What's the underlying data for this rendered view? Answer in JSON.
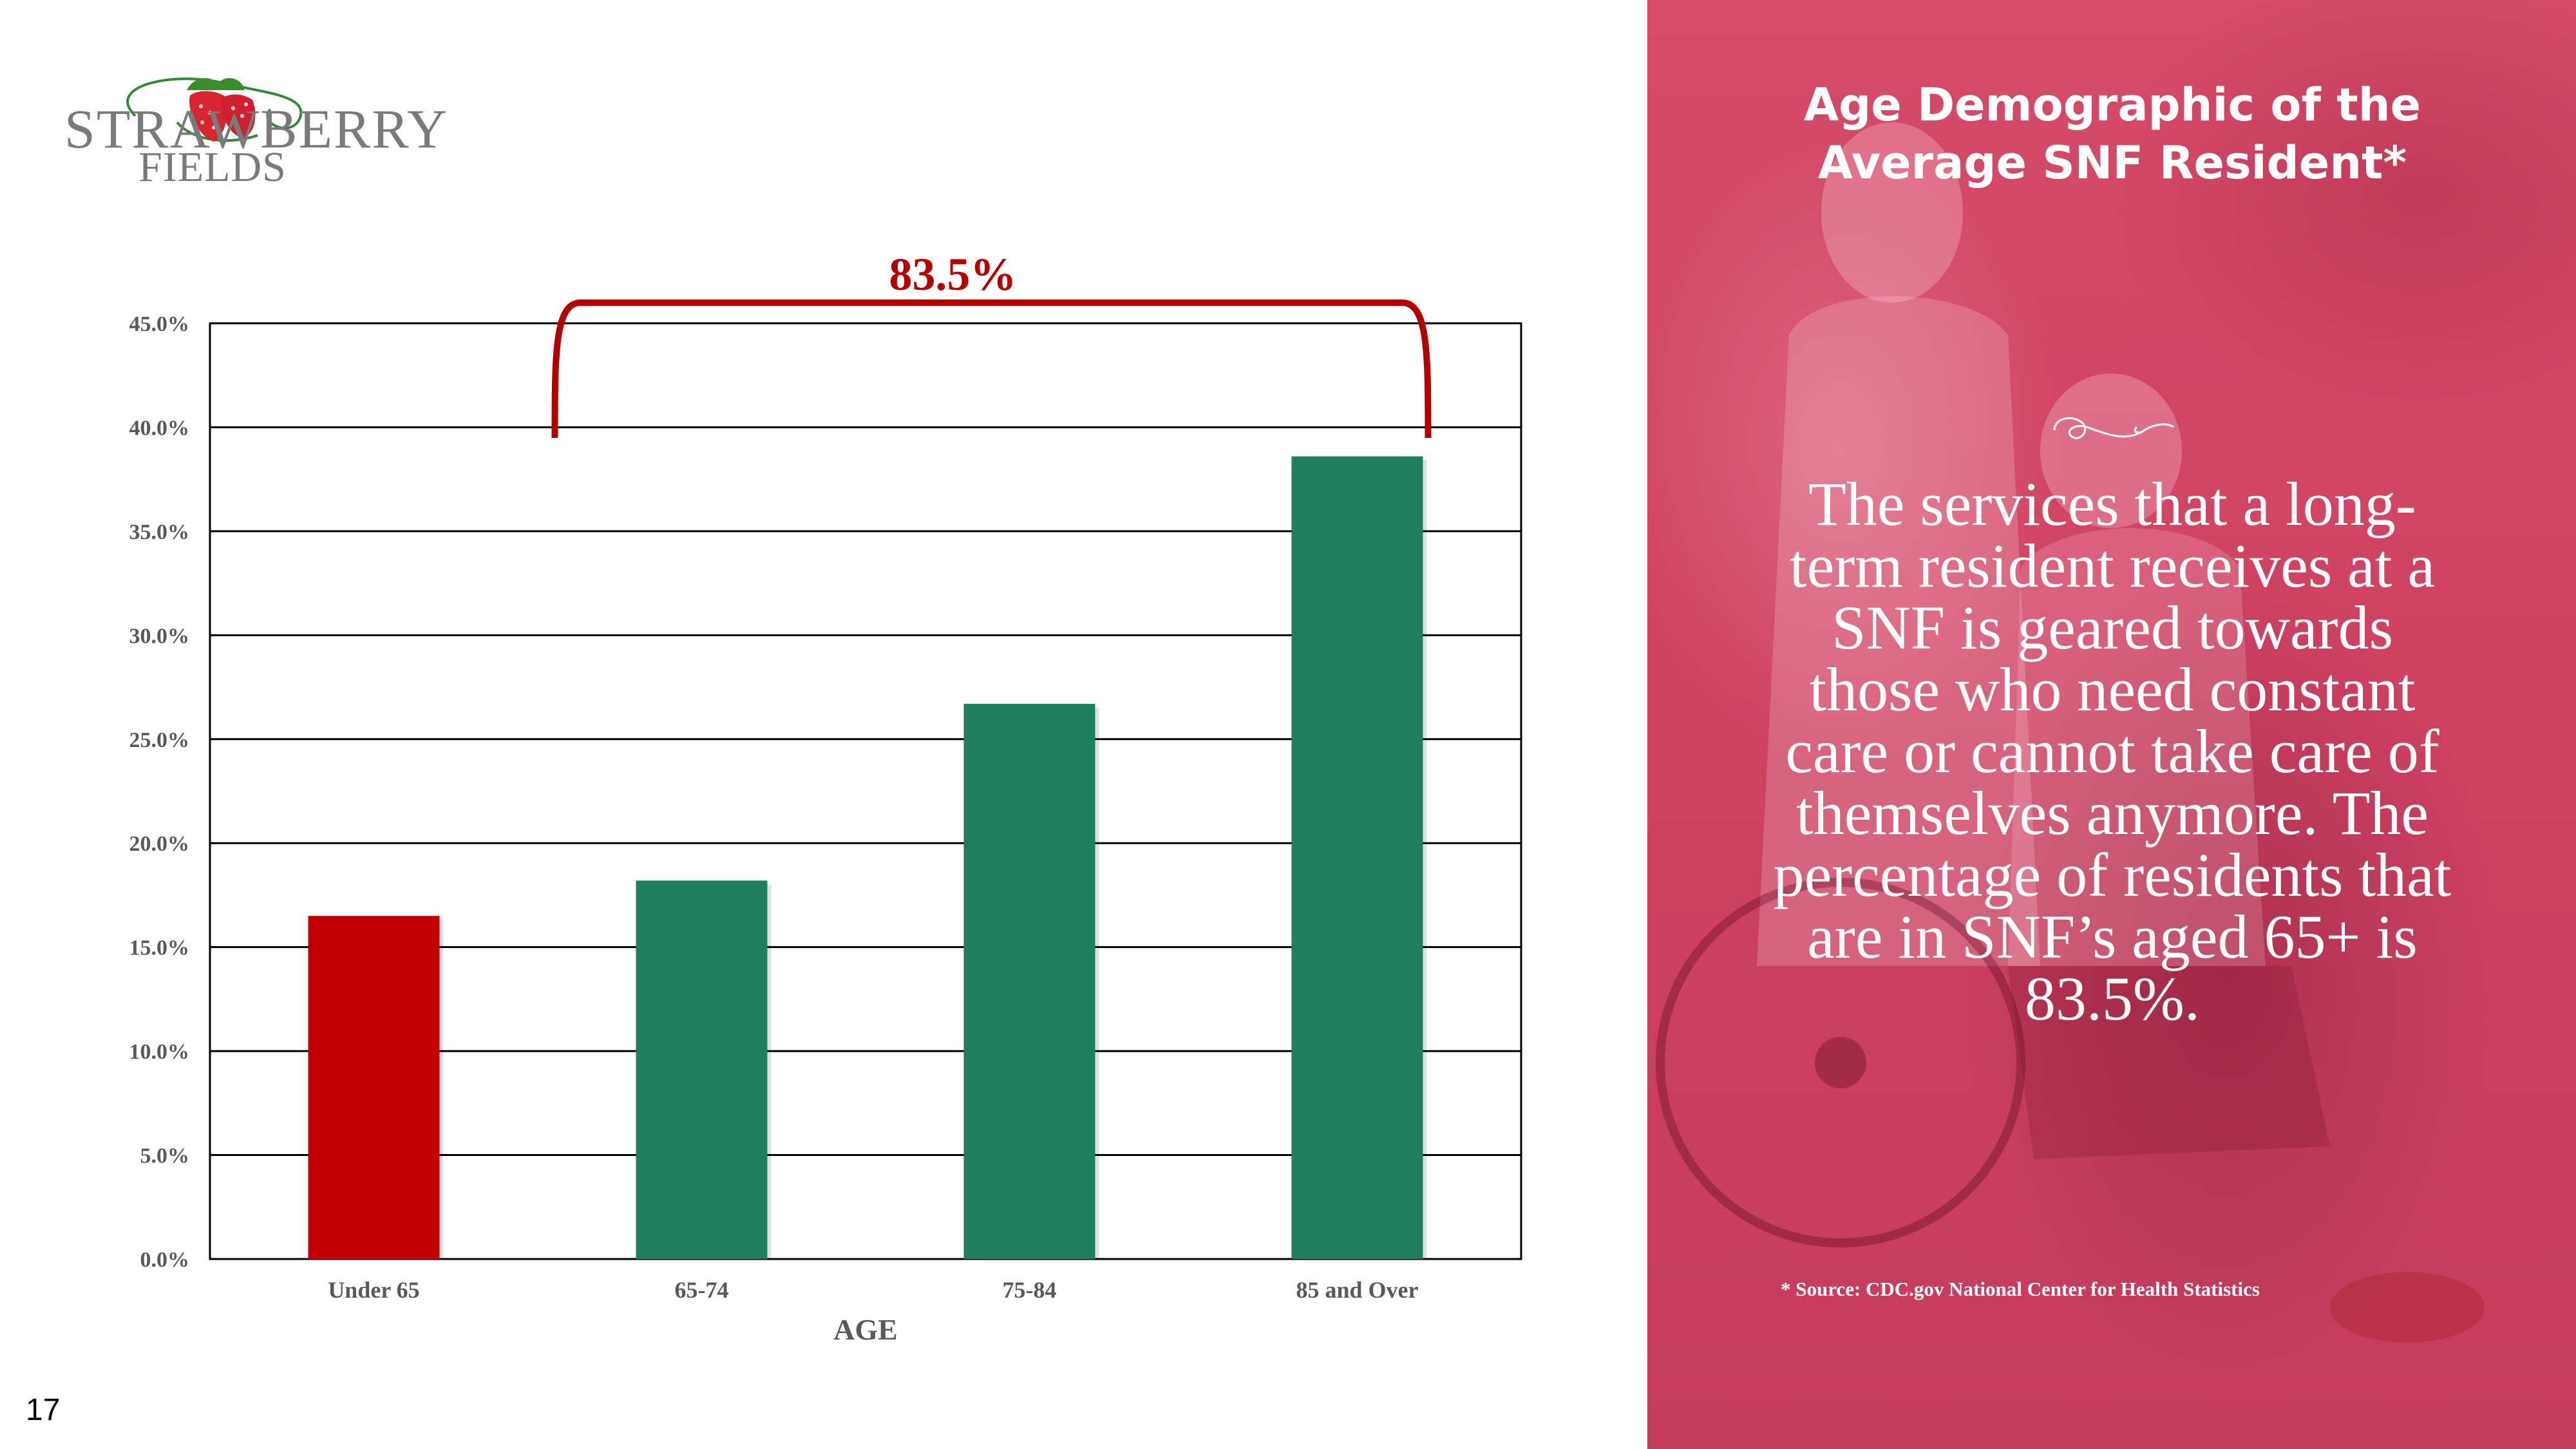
{
  "slide": {
    "page_number": "17"
  },
  "logo": {
    "line1": "STRAWBERRY",
    "line2": "FIELDS"
  },
  "chart_data": {
    "type": "bar",
    "categories": [
      "Under 65",
      "65-74",
      "75-84",
      "85 and Over"
    ],
    "values": [
      16.5,
      18.2,
      26.7,
      38.6
    ],
    "xlabel": "AGE",
    "ylabel": "",
    "ylim": [
      0,
      45
    ],
    "yticks": [
      "0.0%",
      "5.0%",
      "10.0%",
      "15.0%",
      "20.0%",
      "25.0%",
      "30.0%",
      "35.0%",
      "40.0%",
      "45.0%"
    ],
    "grid": true,
    "colors": [
      "#c00000",
      "#1e7e5e",
      "#1e7e5e",
      "#1e7e5e"
    ],
    "annotation": {
      "label": "83.5%",
      "spans": [
        "65-74",
        "85 and Over"
      ],
      "color": "#b30000"
    }
  },
  "panel": {
    "title": "Age Demographic of the Average SNF Resident*",
    "body": "The services that a long-term resident receives at a SNF is geared towards those who need constant care or cannot take care of themselves anymore. The percentage of residents that are in SNF’s aged 65+ is 83.5%.",
    "source": "* Source: CDC.gov National Center for Health Statistics",
    "background_color": "#d04462"
  }
}
